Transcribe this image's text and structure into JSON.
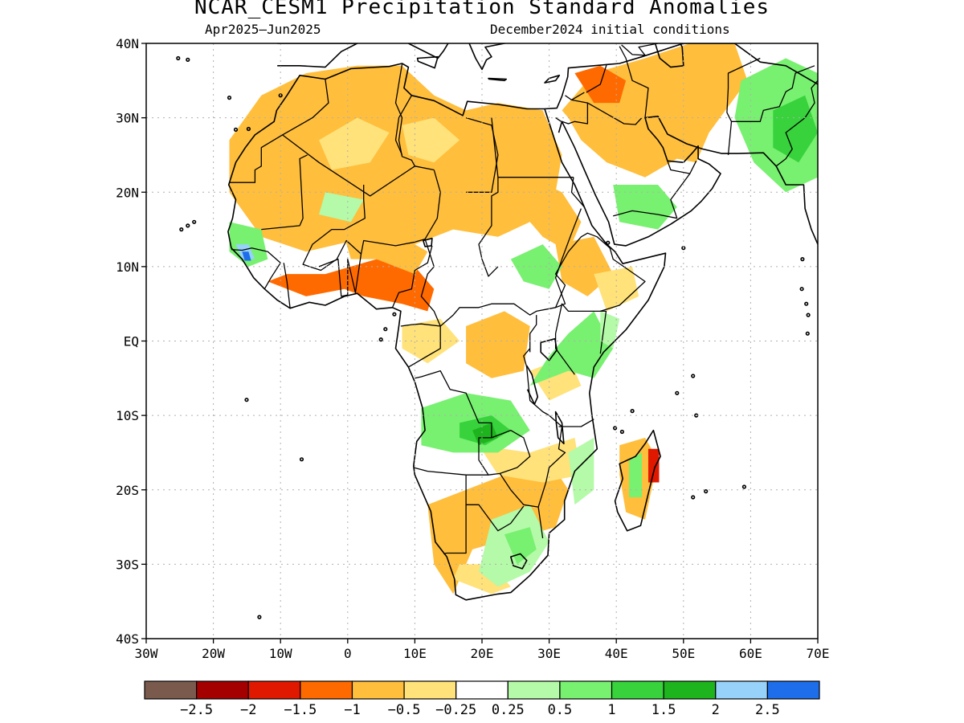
{
  "title": "NCAR_CESM1 Precipitation Standard Anomalies",
  "subtitle_left": "Apr2025–Jun2025",
  "subtitle_right": "December2024 initial conditions",
  "map": {
    "lon_range": [
      -30,
      75
    ],
    "lat_range": [
      -40,
      40
    ],
    "x_ticks": [
      "30W",
      "20W",
      "10W",
      "0",
      "10E",
      "20E",
      "30E",
      "40E",
      "50E",
      "60E",
      "70E"
    ],
    "y_ticks": [
      "40N",
      "30N",
      "20N",
      "10N",
      "EQ",
      "10S",
      "20S",
      "30S",
      "40S"
    ],
    "grid": true
  },
  "colorbar": {
    "colors": [
      "#7b5a4e",
      "#a50000",
      "#e11800",
      "#ff6a00",
      "#ffbe3c",
      "#ffe27a",
      "#ffffff",
      "#b4faa8",
      "#78f070",
      "#37d23c",
      "#1eb41e",
      "#96d2fa",
      "#1e6eeb"
    ],
    "labels": [
      "−2.5",
      "−2",
      "−1.5",
      "−1",
      "−0.5",
      "−0.25",
      "0.25",
      "0.5",
      "1",
      "1.5",
      "2",
      "2.5"
    ]
  },
  "anomaly_colors": {
    "dry_mod": "#ffbe3c",
    "dry_light": "#ffe27a",
    "dry_strong": "#ff6a00",
    "dry_severe": "#e11800",
    "wet_light": "#b4faa8",
    "wet_mod": "#78f070",
    "wet_strong": "#37d23c",
    "wet_severe": "#1eb41e",
    "wet_extreme": "#96d2fa",
    "wet_top": "#1e6eeb"
  }
}
